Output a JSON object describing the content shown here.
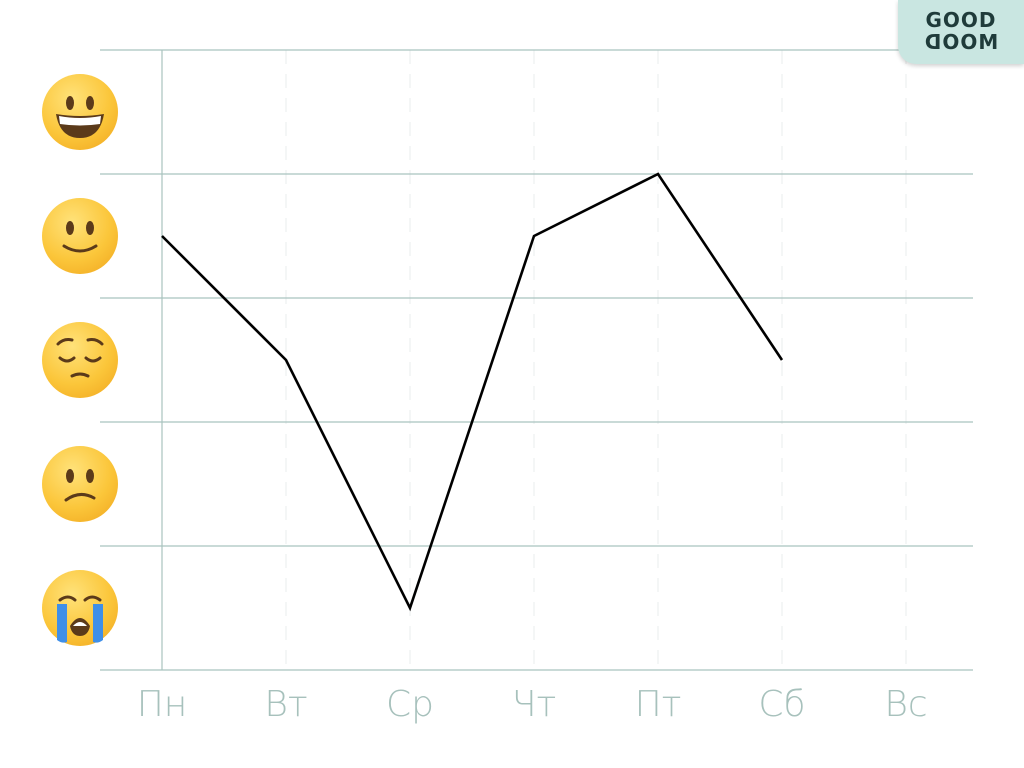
{
  "logo": {
    "line1": "GOOD",
    "line2": "MOOD"
  },
  "chart_data": {
    "type": "line",
    "categories": [
      "Пн",
      "Вт",
      "Ср",
      "Чт",
      "Пт",
      "Сб",
      "Вс"
    ],
    "y_levels": [
      "crying-face",
      "confused-face",
      "pensive-face",
      "slightly-smiling-face",
      "grinning-face"
    ],
    "ylim": [
      0.5,
      5.5
    ],
    "series": [
      {
        "values": [
          4,
          3,
          1,
          4,
          4.5,
          3,
          null
        ]
      }
    ],
    "colors": {
      "line": "#000000",
      "grid": "#a9c3bf",
      "tick_label": "#a7c1bc",
      "dashed_grid": "#f1f3f3"
    }
  }
}
